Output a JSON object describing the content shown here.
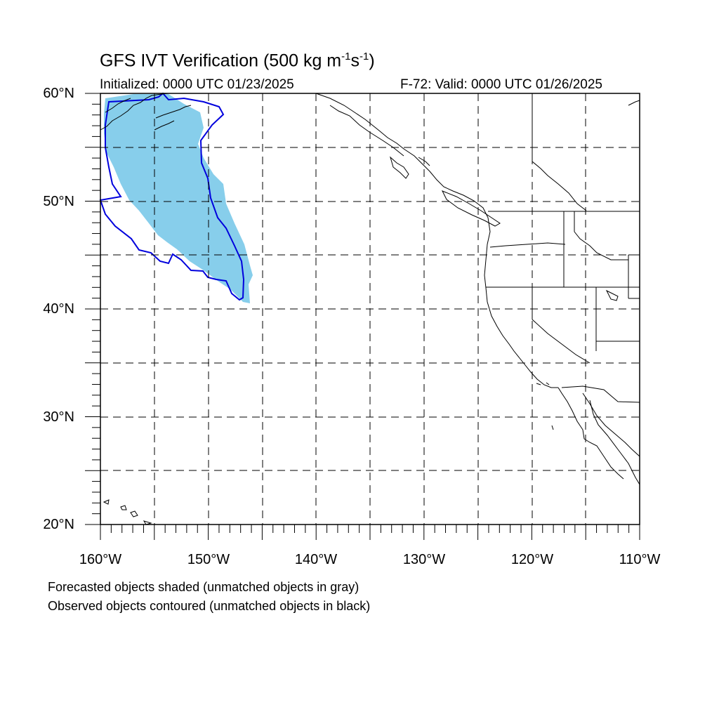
{
  "figure": {
    "title_text": "GFS IVT Verification (500 kg m",
    "title_exp1": "-1",
    "title_mid": "s",
    "title_exp2": "-1",
    "title_end": ")",
    "initialized": "Initialized: 0000 UTC 01/23/2025",
    "valid": "F-72: Valid: 0000 UTC 01/26/2025"
  },
  "axes": {
    "lat_labels": [
      "60°N",
      "50°N",
      "40°N",
      "30°N",
      "20°N"
    ],
    "lon_labels": [
      "160°W",
      "150°W",
      "140°W",
      "130°W",
      "120°W",
      "110°W"
    ]
  },
  "legend_notes": {
    "forecast": "Forecasted objects shaded (unmatched objects in gray)",
    "observed": "Observed objects contoured (unmatched objects in black)"
  },
  "colors": {
    "forecast_fill": "#87ceeb",
    "observed_contour": "#0000dd",
    "coastline": "#000000",
    "grid": "#000000"
  }
}
